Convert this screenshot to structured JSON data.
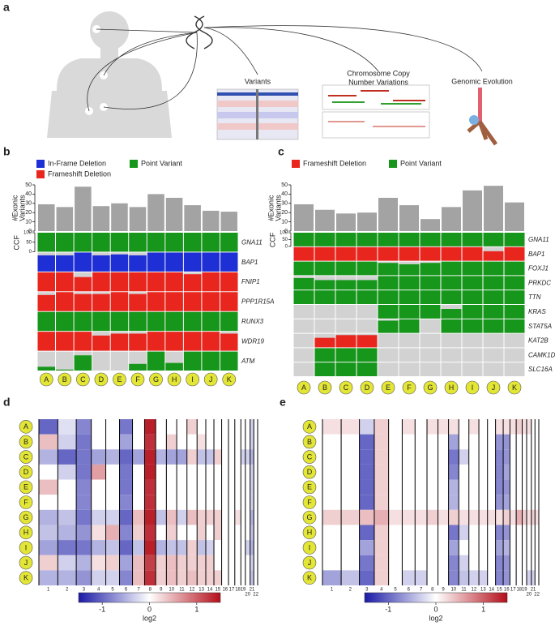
{
  "panel_labels": [
    "a",
    "b",
    "c",
    "d",
    "e"
  ],
  "figure_a": {
    "captions": [
      [
        "Variants"
      ],
      [
        "Chromosome Copy",
        "Number Variations"
      ],
      [
        "Genomic Evolution"
      ]
    ]
  },
  "chart_data": [
    {
      "type": "oncoprint",
      "legend": [
        {
          "name": "In-Frame Deletion",
          "color": "#1f2fd6"
        },
        {
          "name": "Frameshift Deletion",
          "color": "#e8261e"
        },
        {
          "name": "Point Variant",
          "color": "#16961a"
        }
      ],
      "samples": [
        "A",
        "B",
        "C",
        "D",
        "E",
        "F",
        "G",
        "H",
        "I",
        "J",
        "K"
      ],
      "ylabel": [
        "#Exonic",
        "Variants"
      ],
      "ylim": [
        0,
        50
      ],
      "yticks": [
        0,
        10,
        20,
        30,
        40,
        50
      ],
      "values": [
        29,
        26,
        48,
        27,
        30,
        26,
        40,
        36,
        28,
        22,
        21
      ],
      "bar_color": "#a3a3a3",
      "ccf_label": "CCF",
      "ccf_lim": [
        0,
        100
      ],
      "ccf_ticks": [
        0,
        50,
        100
      ],
      "genes": [
        {
          "name": "GNA11",
          "color": "#16961a",
          "values": [
            100,
            100,
            100,
            100,
            100,
            100,
            100,
            100,
            100,
            100,
            100
          ]
        },
        {
          "name": "BAP1",
          "color": "#1f2fd6",
          "values": [
            85,
            85,
            100,
            85,
            90,
            85,
            100,
            100,
            100,
            100,
            100
          ]
        },
        {
          "name": "FNIP1",
          "color": "#e8261e",
          "values": [
            100,
            100,
            75,
            100,
            100,
            100,
            100,
            100,
            90,
            100,
            100
          ]
        },
        {
          "name": "PPP1R15A",
          "color": "#e8261e",
          "values": [
            85,
            100,
            90,
            90,
            100,
            90,
            100,
            100,
            100,
            100,
            100
          ]
        },
        {
          "name": "RUNX3",
          "color": "#16961a",
          "values": [
            100,
            100,
            100,
            100,
            100,
            100,
            100,
            100,
            100,
            100,
            100
          ]
        },
        {
          "name": "WDR19",
          "color": "#e8261e",
          "values": [
            100,
            100,
            100,
            80,
            90,
            90,
            100,
            100,
            100,
            100,
            90
          ]
        },
        {
          "name": "ATM",
          "color": "#16961a",
          "values": [
            20,
            5,
            80,
            0,
            0,
            35,
            100,
            40,
            100,
            100,
            100
          ]
        }
      ]
    },
    {
      "type": "oncoprint",
      "legend": [
        {
          "name": "Frameshift Deletion",
          "color": "#e8261e"
        },
        {
          "name": "Point Variant",
          "color": "#16961a"
        }
      ],
      "samples": [
        "A",
        "B",
        "C",
        "D",
        "E",
        "F",
        "G",
        "H",
        "I",
        "J",
        "K"
      ],
      "ylabel": [
        "#Exonic",
        "Variants"
      ],
      "ylim": [
        0,
        50
      ],
      "yticks": [
        0,
        10,
        20,
        30,
        40,
        50
      ],
      "values": [
        29,
        23,
        19,
        20,
        36,
        28,
        13,
        26,
        44,
        49,
        31
      ],
      "bar_color": "#a3a3a3",
      "ccf_label": "CCF",
      "ccf_lim": [
        0,
        100
      ],
      "ccf_ticks": [
        0,
        50,
        100
      ],
      "genes": [
        {
          "name": "GNA11",
          "color": "#16961a",
          "values": [
            100,
            100,
            100,
            100,
            100,
            100,
            100,
            100,
            100,
            100,
            100
          ]
        },
        {
          "name": "BAP1",
          "color": "#e8261e",
          "values": [
            100,
            100,
            100,
            100,
            100,
            100,
            100,
            100,
            100,
            70,
            100
          ]
        },
        {
          "name": "FOXJ1",
          "color": "#16961a",
          "values": [
            100,
            100,
            100,
            100,
            90,
            80,
            90,
            100,
            100,
            100,
            100
          ]
        },
        {
          "name": "PRKDC",
          "color": "#16961a",
          "values": [
            85,
            70,
            70,
            70,
            100,
            100,
            100,
            100,
            100,
            100,
            100
          ]
        },
        {
          "name": "TTN",
          "color": "#16961a",
          "values": [
            100,
            100,
            100,
            100,
            100,
            100,
            100,
            100,
            100,
            100,
            100
          ]
        },
        {
          "name": "KRAS",
          "color": "#16961a",
          "values": [
            0,
            0,
            0,
            0,
            100,
            100,
            100,
            70,
            100,
            100,
            100
          ]
        },
        {
          "name": "STAT5A",
          "color": "#16961a",
          "values": [
            0,
            0,
            0,
            0,
            90,
            100,
            0,
            100,
            100,
            100,
            100
          ]
        },
        {
          "name": "KAT2B",
          "color": "#e8261e",
          "values": [
            0,
            70,
            90,
            90,
            0,
            0,
            0,
            0,
            0,
            0,
            0
          ]
        },
        {
          "name": "CAMK1D",
          "color": "#16961a",
          "values": [
            0,
            100,
            100,
            100,
            0,
            0,
            0,
            0,
            0,
            0,
            0
          ]
        },
        {
          "name": "SLC16A",
          "color": "#16961a",
          "values": [
            0,
            100,
            100,
            100,
            0,
            0,
            0,
            0,
            0,
            0,
            0
          ]
        }
      ]
    },
    {
      "type": "heatmap",
      "rows": [
        "A",
        "B",
        "C",
        "D",
        "E",
        "F",
        "G",
        "H",
        "I",
        "J",
        "K"
      ],
      "columns": [
        "1",
        "2",
        "3",
        "4",
        "5",
        "6",
        "7",
        "8",
        "9",
        "10",
        "11",
        "12",
        "13",
        "14",
        "15",
        "16",
        "17",
        "18",
        "19",
        "20",
        "21",
        "22"
      ],
      "values": [
        [
          -1.0,
          -0.2,
          -0.8,
          0,
          0,
          -0.9,
          0,
          1.4,
          0,
          0,
          0,
          0.3,
          0,
          0,
          0,
          0,
          0,
          0,
          0,
          0,
          -0.3,
          0
        ],
        [
          0.4,
          -0.3,
          -0.9,
          0,
          0,
          -0.6,
          0,
          1.3,
          0,
          0.3,
          0,
          0,
          0.2,
          0,
          0,
          0,
          0,
          0,
          0,
          0,
          -0.3,
          0
        ],
        [
          -0.5,
          -1.0,
          -0.9,
          -0.6,
          -0.5,
          -1.0,
          -0.6,
          1.4,
          -0.5,
          -0.6,
          -0.6,
          0.3,
          -0.4,
          -0.4,
          0.3,
          0,
          0,
          0,
          -0.3,
          -0.3,
          -0.5,
          0
        ],
        [
          0,
          -0.3,
          -0.9,
          0.6,
          0,
          -0.9,
          0,
          1.4,
          0,
          0,
          0,
          0,
          0,
          0,
          0,
          0,
          0,
          0,
          0,
          0,
          -0.3,
          0
        ],
        [
          0.4,
          0,
          -0.8,
          0,
          0,
          -0.9,
          0,
          1.3,
          0,
          0,
          0,
          0,
          0,
          0,
          0,
          0,
          0,
          0,
          0,
          0,
          -0.3,
          0
        ],
        [
          0,
          0,
          -0.8,
          0,
          0,
          -0.8,
          0,
          1.3,
          0,
          0,
          0,
          0,
          0,
          0,
          0,
          0,
          0,
          0,
          0,
          0,
          -0.3,
          0
        ],
        [
          -0.5,
          -0.4,
          -0.9,
          -0.3,
          -0.3,
          -1.0,
          0.4,
          1.4,
          -0.4,
          0.4,
          -0.3,
          0.4,
          0.3,
          0.3,
          0.3,
          0,
          0,
          0.2,
          0,
          0,
          -0.5,
          0
        ],
        [
          -0.4,
          -0.5,
          -0.7,
          0.2,
          0.5,
          -0.8,
          0.3,
          1.3,
          0,
          0.3,
          0,
          0,
          0.3,
          0,
          0.3,
          0,
          0,
          0,
          0,
          0,
          -0.4,
          0
        ],
        [
          -0.6,
          -0.9,
          -0.9,
          -0.5,
          -0.4,
          -1.0,
          -0.4,
          1.4,
          -0.5,
          -0.4,
          -0.4,
          0.3,
          -0.4,
          -0.3,
          0,
          0,
          0,
          0,
          0,
          -0.3,
          -0.5,
          0
        ],
        [
          0.3,
          -0.3,
          -0.5,
          0.2,
          0.3,
          -0.6,
          0.4,
          1.2,
          0.3,
          0.4,
          0.3,
          0.3,
          0.3,
          0.3,
          0,
          0,
          0,
          0,
          0,
          0,
          -0.3,
          0
        ],
        [
          -0.5,
          -0.5,
          -0.7,
          -0.3,
          -0.3,
          -0.8,
          0.4,
          1.3,
          0.3,
          0.4,
          0.3,
          0.4,
          0.3,
          0.3,
          0.3,
          0,
          0,
          0,
          0,
          0,
          -0.4,
          0
        ]
      ],
      "clim": [
        -1.5,
        1.5
      ],
      "cticks": [
        -1,
        0,
        1
      ],
      "clabel": "log2"
    },
    {
      "type": "heatmap",
      "rows": [
        "A",
        "B",
        "C",
        "D",
        "E",
        "F",
        "G",
        "H",
        "I",
        "J",
        "K"
      ],
      "columns": [
        "1",
        "2",
        "3",
        "4",
        "5",
        "6",
        "7",
        "8",
        "9",
        "10",
        "11",
        "12",
        "13",
        "14",
        "15",
        "16",
        "17",
        "18",
        "19",
        "20",
        "21",
        "22"
      ],
      "values": [
        [
          0.2,
          0.2,
          -0.3,
          0.3,
          0,
          0.2,
          0,
          0.2,
          0.2,
          0.2,
          0,
          0.2,
          0,
          0,
          0.2,
          0.2,
          0.2,
          0.3,
          0.2,
          0.2,
          0,
          0
        ],
        [
          0,
          0,
          -1.0,
          0.3,
          0,
          0,
          0,
          0,
          0,
          -0.6,
          0,
          0,
          0,
          0,
          -0.7,
          -0.7,
          0,
          0,
          0,
          0,
          0,
          0
        ],
        [
          0,
          0,
          -1.0,
          0.3,
          0,
          0,
          0,
          0,
          0,
          -0.9,
          -0.3,
          0,
          0,
          0,
          -0.8,
          -0.7,
          0,
          0,
          0,
          0,
          0,
          0
        ],
        [
          0,
          0,
          -1.0,
          0.3,
          0,
          0,
          0,
          0,
          0,
          -0.8,
          0,
          0,
          0,
          0,
          -0.8,
          -0.6,
          0,
          0,
          0,
          0,
          0,
          0
        ],
        [
          0,
          0,
          -1.0,
          0.3,
          0,
          0,
          0,
          0,
          0,
          -0.5,
          0,
          0,
          0,
          0,
          -0.8,
          -0.7,
          0,
          0,
          0,
          0,
          0,
          0
        ],
        [
          0,
          0,
          -1.0,
          0.3,
          0,
          0,
          0,
          0,
          0,
          -0.5,
          0,
          0,
          0,
          0,
          -0.7,
          -0.6,
          0,
          0,
          0,
          0,
          0,
          0
        ],
        [
          0.3,
          0.3,
          0.4,
          0.5,
          0.2,
          0.2,
          0.2,
          0.3,
          0.2,
          0.3,
          0.2,
          0.2,
          0.2,
          0.2,
          0.2,
          0.3,
          0.2,
          0.5,
          0.3,
          0.2,
          0.3,
          0.2
        ],
        [
          0,
          0,
          -1.0,
          0.3,
          0,
          0,
          0,
          0,
          0,
          -0.9,
          -0.3,
          0,
          0,
          0,
          -0.8,
          -0.7,
          0,
          0,
          0,
          0,
          0,
          0
        ],
        [
          0,
          0,
          -0.6,
          0.3,
          0,
          0,
          0,
          0,
          0,
          -0.6,
          0,
          0,
          0,
          0,
          -0.6,
          -0.5,
          0,
          0,
          0,
          0,
          0,
          0
        ],
        [
          0,
          0,
          -0.9,
          0.3,
          0,
          0,
          0,
          0,
          0,
          -0.8,
          -0.3,
          0,
          0,
          0,
          -0.8,
          -0.7,
          0,
          0,
          0,
          0,
          0,
          0
        ],
        [
          -0.6,
          -0.4,
          -1.0,
          0.3,
          0,
          -0.3,
          -0.3,
          0,
          0,
          -0.8,
          -0.4,
          -0.3,
          -0.3,
          0,
          -0.8,
          -0.7,
          0,
          0,
          0,
          -0.3,
          -0.3,
          0
        ]
      ],
      "clim": [
        -1.5,
        1.5
      ],
      "cticks": [
        -1,
        0,
        1
      ],
      "clabel": "log2"
    }
  ]
}
